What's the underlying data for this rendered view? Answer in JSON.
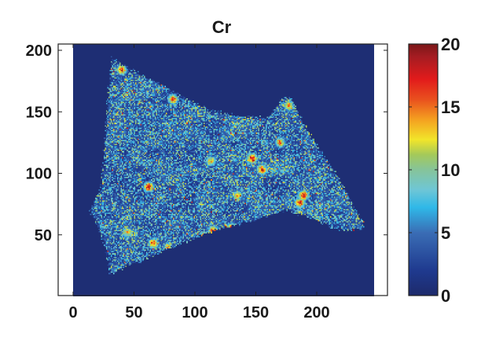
{
  "chart_data": {
    "type": "heatmap",
    "title": "Cr",
    "xlabel": "",
    "ylabel": "",
    "xlim": [
      -12,
      258
    ],
    "ylim": [
      0,
      205
    ],
    "image_extent": {
      "x": [
        0,
        247
      ],
      "y": [
        0,
        205
      ]
    },
    "xticks": [
      0,
      50,
      100,
      150,
      200
    ],
    "yticks": [
      50,
      100,
      150,
      200
    ],
    "colorbar": {
      "range": [
        0,
        20
      ],
      "ticks": [
        0,
        5,
        10,
        15,
        20
      ],
      "colormap": "jet"
    },
    "background_value": 0.5,
    "sample_outline": [
      [
        33,
        194
      ],
      [
        40,
        188
      ],
      [
        60,
        178
      ],
      [
        85,
        165
      ],
      [
        110,
        152
      ],
      [
        135,
        146
      ],
      [
        160,
        145
      ],
      [
        172,
        160
      ],
      [
        178,
        162
      ],
      [
        195,
        130
      ],
      [
        215,
        100
      ],
      [
        240,
        55
      ],
      [
        225,
        53
      ],
      [
        215,
        55
      ],
      [
        200,
        62
      ],
      [
        175,
        70
      ],
      [
        150,
        62
      ],
      [
        130,
        57
      ],
      [
        110,
        52
      ],
      [
        95,
        45
      ],
      [
        70,
        35
      ],
      [
        45,
        25
      ],
      [
        30,
        18
      ],
      [
        27,
        40
      ],
      [
        20,
        58
      ],
      [
        14,
        70
      ],
      [
        22,
        85
      ],
      [
        25,
        110
      ],
      [
        28,
        150
      ],
      [
        30,
        180
      ]
    ],
    "hotspots": [
      {
        "x": 40,
        "y": 184,
        "value": 18
      },
      {
        "x": 82,
        "y": 160,
        "value": 17
      },
      {
        "x": 62,
        "y": 89,
        "value": 19
      },
      {
        "x": 147,
        "y": 112,
        "value": 20
      },
      {
        "x": 155,
        "y": 103,
        "value": 18
      },
      {
        "x": 189,
        "y": 82,
        "value": 20
      },
      {
        "x": 186,
        "y": 76,
        "value": 19
      },
      {
        "x": 108,
        "y": 48,
        "value": 20
      },
      {
        "x": 115,
        "y": 53,
        "value": 18
      },
      {
        "x": 130,
        "y": 55,
        "value": 19
      },
      {
        "x": 170,
        "y": 125,
        "value": 16
      },
      {
        "x": 113,
        "y": 110,
        "value": 15
      },
      {
        "x": 45,
        "y": 52,
        "value": 14
      },
      {
        "x": 78,
        "y": 40,
        "value": 14
      },
      {
        "x": 177,
        "y": 155,
        "value": 15
      },
      {
        "x": 66,
        "y": 43,
        "value": 18
      },
      {
        "x": 200,
        "y": 60,
        "value": 16
      },
      {
        "x": 135,
        "y": 82,
        "value": 15
      }
    ]
  }
}
